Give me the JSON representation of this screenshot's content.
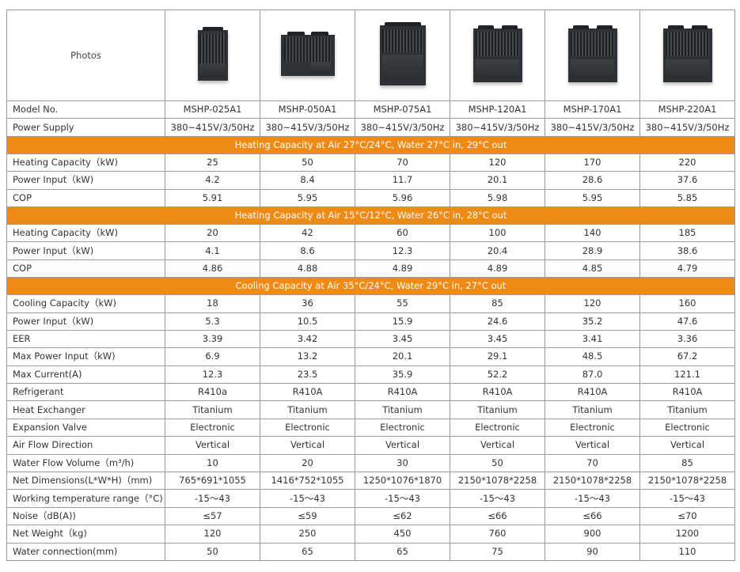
{
  "header": {
    "photos_label": "Photos"
  },
  "models": [
    "MSHP-025A1",
    "MSHP-050A1",
    "MSHP-075A1",
    "MSHP-120A1",
    "MSHP-170A1",
    "MSHP-220A1"
  ],
  "photos": [
    {
      "icon": "heat-pump-unit-small-icon"
    },
    {
      "icon": "heat-pump-unit-medium-icon"
    },
    {
      "icon": "heat-pump-unit-tall-icon"
    },
    {
      "icon": "heat-pump-unit-large-icon"
    },
    {
      "icon": "heat-pump-unit-large-icon"
    },
    {
      "icon": "heat-pump-unit-large-icon"
    }
  ],
  "colors": {
    "section_bg": "#f08a16",
    "border": "#9a9a9a"
  },
  "rows": [
    {
      "type": "data",
      "label": "Model No.",
      "values": [
        "MSHP-025A1",
        "MSHP-050A1",
        "MSHP-075A1",
        "MSHP-120A1",
        "MSHP-170A1",
        "MSHP-220A1"
      ]
    },
    {
      "type": "data",
      "label": "Power Supply",
      "values": [
        "380~415V/3/50Hz",
        "380~415V/3/50Hz",
        "380~415V/3/50Hz",
        "380~415V/3/50Hz",
        "380~415V/3/50Hz",
        "380~415V/3/50Hz"
      ]
    },
    {
      "type": "section",
      "label": "Heating Capacity at Air 27°C/24°C, Water 27°C in, 29°C out"
    },
    {
      "type": "data",
      "label": "Heating Capacity（kW)",
      "values": [
        "25",
        "50",
        "70",
        "120",
        "170",
        "220"
      ]
    },
    {
      "type": "data",
      "label": "Power Input（kW)",
      "values": [
        "4.2",
        "8.4",
        "11.7",
        "20.1",
        "28.6",
        "37.6"
      ]
    },
    {
      "type": "data",
      "label": "COP",
      "values": [
        "5.91",
        "5.95",
        "5.96",
        "5.98",
        "5.95",
        "5.85"
      ]
    },
    {
      "type": "section",
      "label": "Heating Capacity at Air 15°C/12°C, Water 26°C in, 28°C out"
    },
    {
      "type": "data",
      "label": "Heating Capacity（kW)",
      "values": [
        "20",
        "42",
        "60",
        "100",
        "140",
        "185"
      ]
    },
    {
      "type": "data",
      "label": "Power Input（kW)",
      "values": [
        "4.1",
        "8.6",
        "12.3",
        "20.4",
        "28.9",
        "38.6"
      ]
    },
    {
      "type": "data",
      "label": "COP",
      "values": [
        "4.86",
        "4.88",
        "4.89",
        "4.89",
        "4.85",
        "4.79"
      ]
    },
    {
      "type": "section",
      "label": "Cooling Capacity at Air 35°C/24°C, Water 29°C in, 27°C out"
    },
    {
      "type": "data",
      "label": "Cooling Capacity（kW)",
      "values": [
        "18",
        "36",
        "55",
        "85",
        "120",
        "160"
      ]
    },
    {
      "type": "data",
      "label": "Power Input（kW)",
      "values": [
        "5.3",
        "10.5",
        "15.9",
        "24.6",
        "35.2",
        "47.6"
      ]
    },
    {
      "type": "data",
      "label": "EER",
      "values": [
        "3.39",
        "3.42",
        "3.45",
        "3.45",
        "3.41",
        "3.36"
      ]
    },
    {
      "type": "data",
      "label": "Max Power Input（kW)",
      "values": [
        "6.9",
        "13.2",
        "20.1",
        "29.1",
        "48.5",
        "67.2"
      ]
    },
    {
      "type": "data",
      "label": "Max Current(A)",
      "values": [
        "12.3",
        "23.5",
        "35.9",
        "52.2",
        "87.0",
        "121.1"
      ]
    },
    {
      "type": "data",
      "label": "Refrigerant",
      "values": [
        "R410a",
        "R410A",
        "R410A",
        "R410A",
        "R410A",
        "R410A"
      ]
    },
    {
      "type": "data",
      "label": "Heat Exchanger",
      "values": [
        "Titanium",
        "Titanium",
        "Titanium",
        "Titanium",
        "Titanium",
        "Titanium"
      ]
    },
    {
      "type": "data",
      "label": "Expansion Valve",
      "values": [
        "Electronic",
        "Electronic",
        "Electronic",
        "Electronic",
        "Electronic",
        "Electronic"
      ]
    },
    {
      "type": "data",
      "label": "Air Flow Direction",
      "values": [
        "Vertical",
        "Vertical",
        "Vertical",
        "Vertical",
        "Vertical",
        "Vertical"
      ]
    },
    {
      "type": "data",
      "label": "Water Flow Volume（m³/h)",
      "values": [
        "10",
        "20",
        "30",
        "50",
        "70",
        "85"
      ]
    },
    {
      "type": "data",
      "label": "Net Dimensions(L*W*H)（mm)",
      "values": [
        "765*691*1055",
        "1416*752*1055",
        "1250*1076*1870",
        "2150*1078*2258",
        "2150*1078*2258",
        "2150*1078*2258"
      ]
    },
    {
      "type": "data",
      "label": "Working temperature range（°C)",
      "values": [
        "-15～43",
        "-15～43",
        "-15～43",
        "-15～43",
        "-15～43",
        "-15～43"
      ]
    },
    {
      "type": "data",
      "label": "Noise（dB(A))",
      "values": [
        "≤57",
        "≤59",
        "≤62",
        "≤66",
        "≤66",
        "≤70"
      ]
    },
    {
      "type": "data",
      "label": "Net Weight（kg)",
      "values": [
        "120",
        "250",
        "450",
        "760",
        "900",
        "1200"
      ]
    },
    {
      "type": "data",
      "label": "Water connection(mm)",
      "values": [
        "50",
        "65",
        "65",
        "75",
        "90",
        "110"
      ]
    }
  ]
}
